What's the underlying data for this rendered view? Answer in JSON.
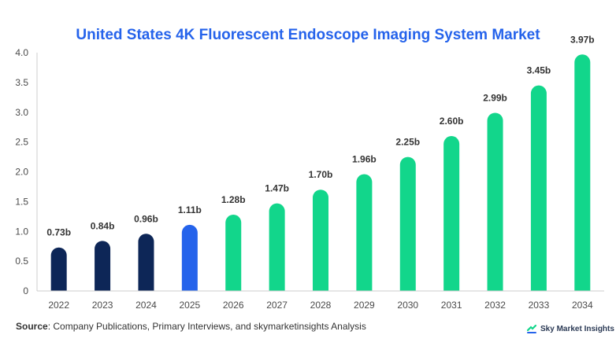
{
  "chart_data": {
    "type": "bar",
    "title": "United States 4K Fluorescent Endoscope Imaging System Market",
    "categories": [
      "2022",
      "2023",
      "2024",
      "2025",
      "2026",
      "2027",
      "2028",
      "2029",
      "2030",
      "2031",
      "2032",
      "2033",
      "2034"
    ],
    "values": [
      0.73,
      0.84,
      0.96,
      1.11,
      1.28,
      1.47,
      1.7,
      1.96,
      2.25,
      2.6,
      2.99,
      3.45,
      3.97
    ],
    "data_labels": [
      "0.73b",
      "0.84b",
      "0.96b",
      "1.11b",
      "1.28b",
      "1.47b",
      "1.70b",
      "1.96b",
      "2.25b",
      "2.60b",
      "2.99b",
      "3.45b",
      "3.97b"
    ],
    "y_ticks": [
      "0",
      "0.5",
      "1.0",
      "1.5",
      "2.0",
      "2.5",
      "3.0",
      "3.5",
      "4.0"
    ],
    "ylim": [
      0,
      4.0
    ],
    "grid": false,
    "colors": {
      "historical": "#0d2657",
      "current": "#2563eb",
      "forecast": "#12d68b"
    },
    "bar_color_groups": [
      "historical",
      "historical",
      "historical",
      "current",
      "forecast",
      "forecast",
      "forecast",
      "forecast",
      "forecast",
      "forecast",
      "forecast",
      "forecast",
      "forecast"
    ]
  },
  "source": {
    "label": "Source",
    "text": ": Company Publications, Primary Interviews, and skymarketinsights Analysis"
  },
  "brand": {
    "name": "Sky Market Insights"
  }
}
